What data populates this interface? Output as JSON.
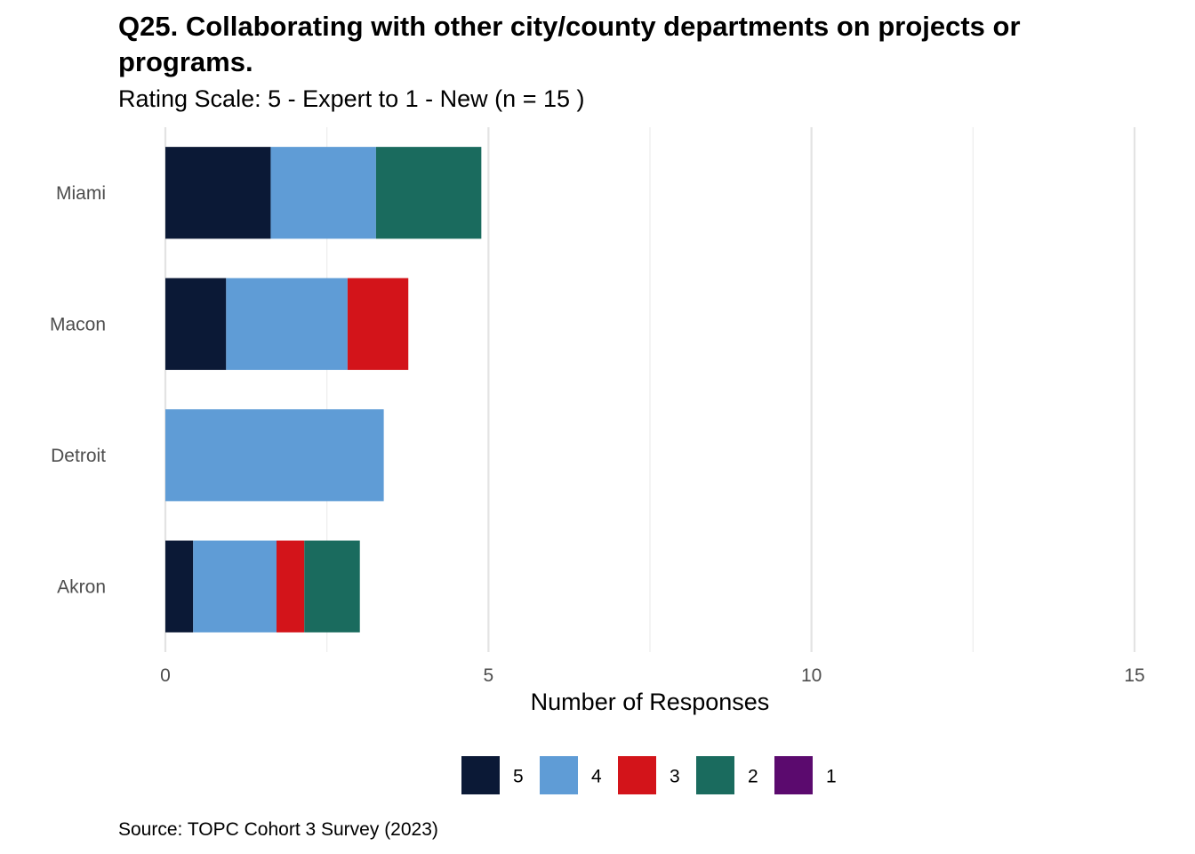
{
  "chart_data": {
    "type": "bar",
    "orientation": "horizontal",
    "stacked": true,
    "title": "Q25. Collaborating with other city/county departments on projects or programs.",
    "subtitle": "Rating Scale: 5 - Expert to 1 - New (n = 15 )",
    "caption": "Source: TOPC Cohort 3 Survey (2023)",
    "xlabel": "Number of Responses",
    "ylabel": "",
    "xlim": [
      0,
      15
    ],
    "x_ticks": [
      "0",
      "5",
      "10",
      "15"
    ],
    "categories": [
      "Akron",
      "Detroit",
      "Macon",
      "Miami"
    ],
    "series": [
      {
        "name": "5",
        "color": "#0b1936",
        "values": [
          0.43,
          0,
          0.94,
          1.63
        ]
      },
      {
        "name": "4",
        "color": "#5f9cd6",
        "values": [
          1.29,
          3.38,
          1.88,
          1.63
        ]
      },
      {
        "name": "3",
        "color": "#d3141a",
        "values": [
          0.43,
          0,
          0.94,
          0
        ]
      },
      {
        "name": "2",
        "color": "#1a6b5e",
        "values": [
          0.86,
          0,
          0,
          1.63
        ]
      },
      {
        "name": "1",
        "color": "#5b0a6e",
        "values": [
          0,
          0,
          0,
          0
        ]
      }
    ],
    "grid": true,
    "legend_position": "bottom"
  }
}
